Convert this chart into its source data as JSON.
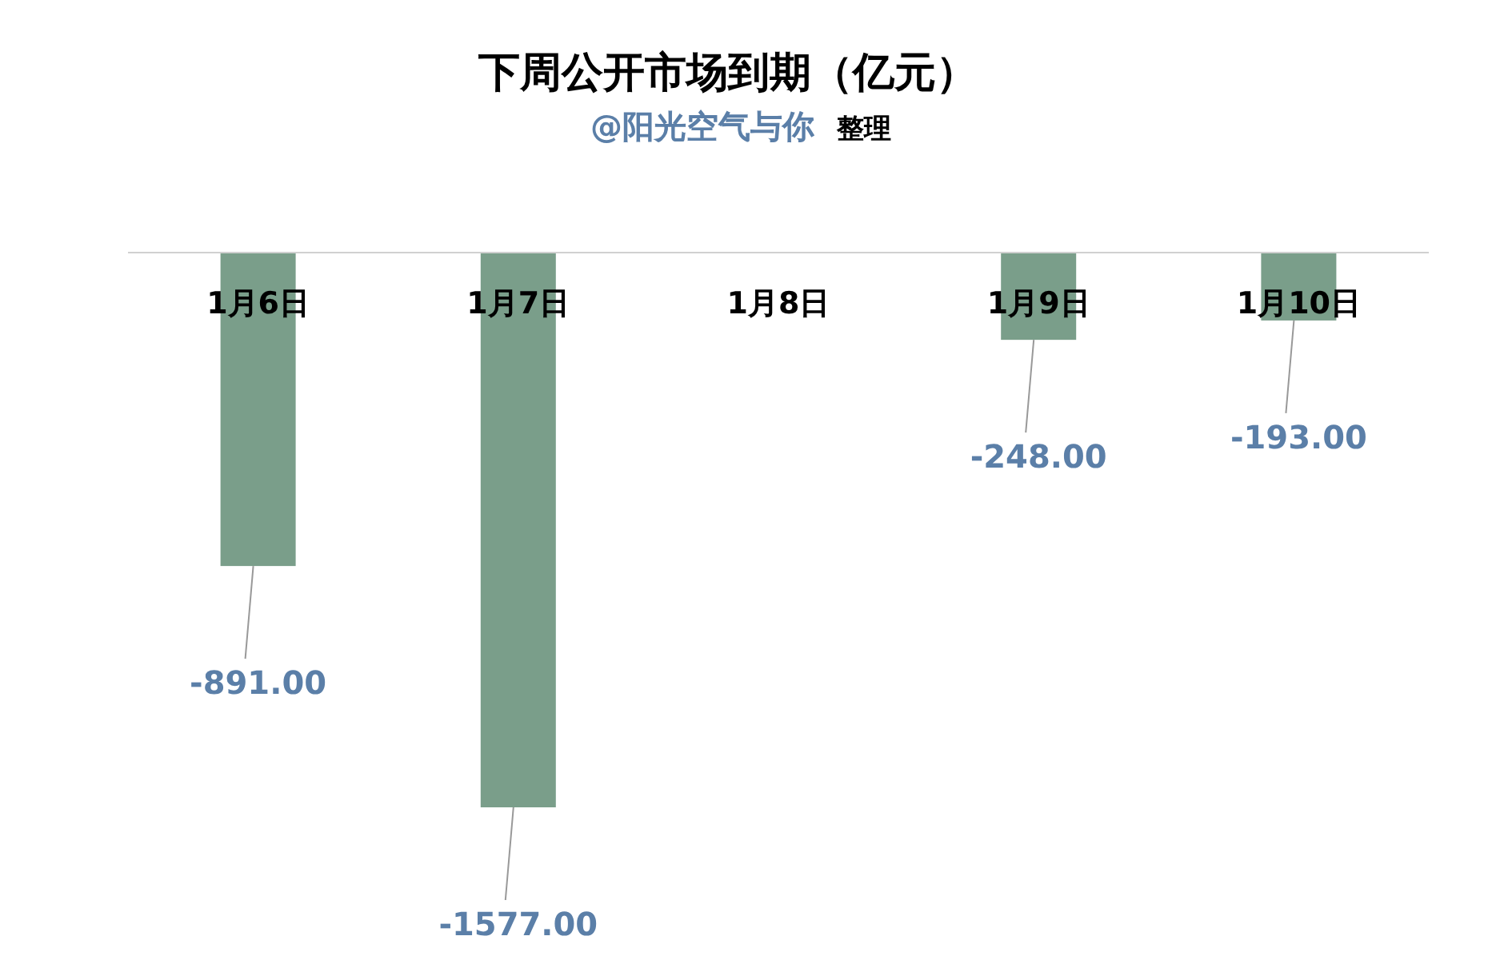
{
  "chart_data": {
    "type": "bar",
    "title": "下周公开市场到期（亿元）",
    "subtitle": "@阳光空气与你 整理",
    "categories": [
      "1月6日",
      "1月7日",
      "1月8日",
      "1月9日",
      "1月10日"
    ],
    "values": [
      -891,
      -1577,
      null,
      -248,
      -193
    ],
    "value_labels": [
      "-891.00",
      "-1577.00",
      null,
      "-248.00",
      "-193.00"
    ],
    "color": "#7a9e8a"
  }
}
